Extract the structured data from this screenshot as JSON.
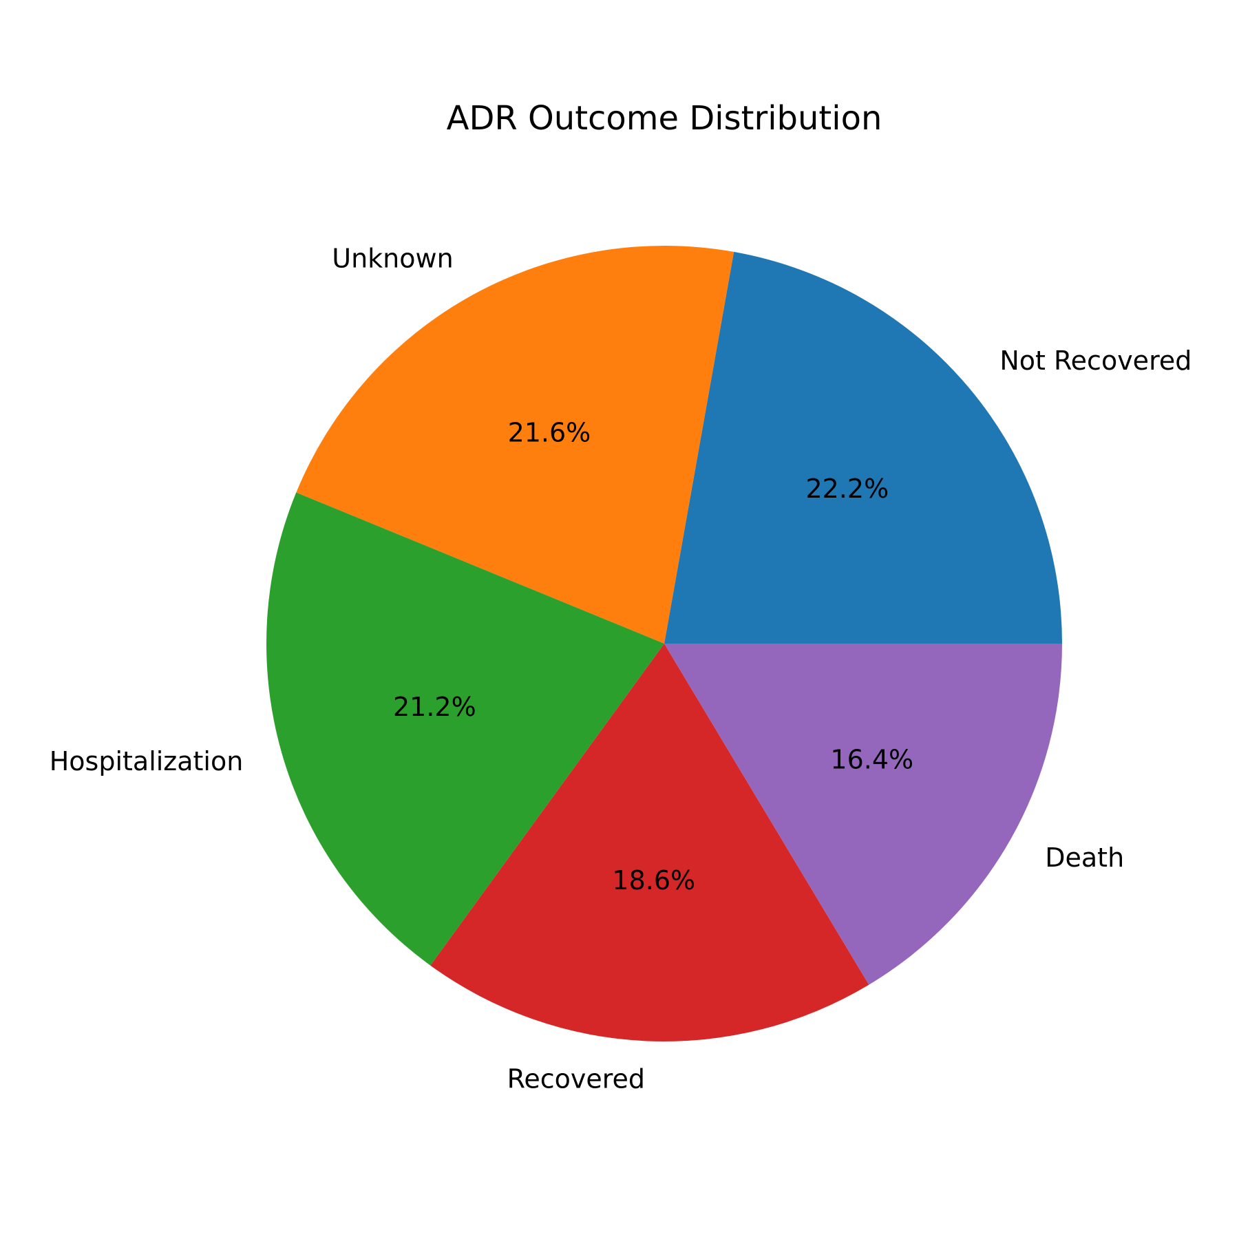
{
  "chart_data": {
    "type": "pie",
    "title": "ADR Outcome Distribution",
    "start_angle_deg": 0,
    "direction": "counterclockwise",
    "slices": [
      {
        "label": "Not Recovered",
        "value": 22.2,
        "pct_label": "22.2%",
        "color": "#1f77b4"
      },
      {
        "label": "Unknown",
        "value": 21.6,
        "pct_label": "21.6%",
        "color": "#ff7f0e"
      },
      {
        "label": "Hospitalization",
        "value": 21.2,
        "pct_label": "21.2%",
        "color": "#2ca02c"
      },
      {
        "label": "Recovered",
        "value": 18.6,
        "pct_label": "18.6%",
        "color": "#d62728"
      },
      {
        "label": "Death",
        "value": 16.4,
        "pct_label": "16.4%",
        "color": "#9467bd"
      }
    ]
  }
}
